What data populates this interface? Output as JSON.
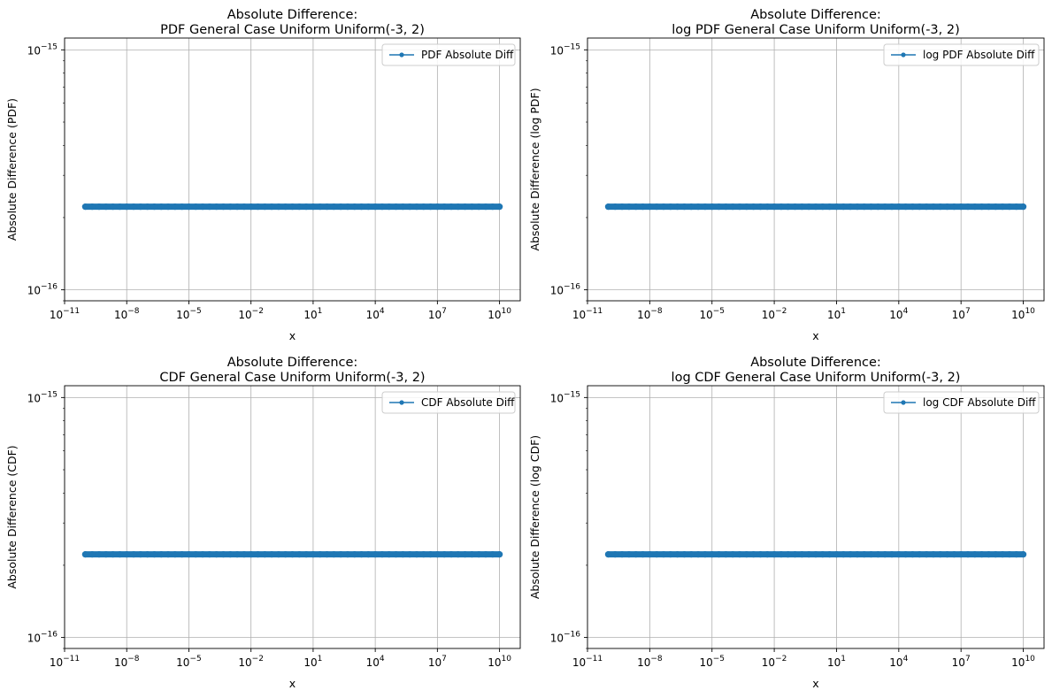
{
  "chart_data": [
    {
      "type": "line",
      "title": [
        "Absolute Difference:",
        "PDF General Case Uniform Uniform(-3, 2)"
      ],
      "xlabel": "x",
      "ylabel": "Absolute Difference (PDF)",
      "xscale": "log",
      "yscale": "log",
      "xlim": [
        1e-11,
        100000000000.0
      ],
      "ylim": [
        9e-17,
        1.12e-15
      ],
      "xticks": [
        {
          "value": 1e-11,
          "base": "10",
          "exp": "−11"
        },
        {
          "value": 1e-08,
          "base": "10",
          "exp": "−8"
        },
        {
          "value": 1e-05,
          "base": "10",
          "exp": "−5"
        },
        {
          "value": 0.01,
          "base": "10",
          "exp": "−2"
        },
        {
          "value": 10.0,
          "base": "10",
          "exp": "1"
        },
        {
          "value": 10000.0,
          "base": "10",
          "exp": "4"
        },
        {
          "value": 10000000.0,
          "base": "10",
          "exp": "7"
        },
        {
          "value": 10000000000.0,
          "base": "10",
          "exp": "10"
        }
      ],
      "yticks": [
        {
          "value": 1e-15,
          "base": "10",
          "exp": "−15"
        },
        {
          "value": 1e-16,
          "base": "10",
          "exp": "−16"
        }
      ],
      "grid": true,
      "legend_position": "top-right",
      "series": [
        {
          "name": "PDF Absolute Diff",
          "color": "#1f77b4",
          "x_range": [
            1e-10,
            10000000000.0
          ],
          "y": 2.22e-16
        }
      ]
    },
    {
      "type": "line",
      "title": [
        "Absolute Difference:",
        "log PDF General Case Uniform Uniform(-3, 2)"
      ],
      "xlabel": "x",
      "ylabel": "Absolute Difference (log PDF)",
      "xscale": "log",
      "yscale": "log",
      "xlim": [
        1e-11,
        100000000000.0
      ],
      "ylim": [
        9e-17,
        1.12e-15
      ],
      "xticks": [
        {
          "value": 1e-11,
          "base": "10",
          "exp": "−11"
        },
        {
          "value": 1e-08,
          "base": "10",
          "exp": "−8"
        },
        {
          "value": 1e-05,
          "base": "10",
          "exp": "−5"
        },
        {
          "value": 0.01,
          "base": "10",
          "exp": "−2"
        },
        {
          "value": 10.0,
          "base": "10",
          "exp": "1"
        },
        {
          "value": 10000.0,
          "base": "10",
          "exp": "4"
        },
        {
          "value": 10000000.0,
          "base": "10",
          "exp": "7"
        },
        {
          "value": 10000000000.0,
          "base": "10",
          "exp": "10"
        }
      ],
      "yticks": [
        {
          "value": 1e-15,
          "base": "10",
          "exp": "−15"
        },
        {
          "value": 1e-16,
          "base": "10",
          "exp": "−16"
        }
      ],
      "grid": true,
      "legend_position": "top-right",
      "series": [
        {
          "name": "log PDF Absolute Diff",
          "color": "#1f77b4",
          "x_range": [
            1e-10,
            10000000000.0
          ],
          "y": 2.22e-16
        }
      ]
    },
    {
      "type": "line",
      "title": [
        "Absolute Difference:",
        "CDF General Case Uniform Uniform(-3, 2)"
      ],
      "xlabel": "x",
      "ylabel": "Absolute Difference (CDF)",
      "xscale": "log",
      "yscale": "log",
      "xlim": [
        1e-11,
        100000000000.0
      ],
      "ylim": [
        9e-17,
        1.12e-15
      ],
      "xticks": [
        {
          "value": 1e-11,
          "base": "10",
          "exp": "−11"
        },
        {
          "value": 1e-08,
          "base": "10",
          "exp": "−8"
        },
        {
          "value": 1e-05,
          "base": "10",
          "exp": "−5"
        },
        {
          "value": 0.01,
          "base": "10",
          "exp": "−2"
        },
        {
          "value": 10.0,
          "base": "10",
          "exp": "1"
        },
        {
          "value": 10000.0,
          "base": "10",
          "exp": "4"
        },
        {
          "value": 10000000.0,
          "base": "10",
          "exp": "7"
        },
        {
          "value": 10000000000.0,
          "base": "10",
          "exp": "10"
        }
      ],
      "yticks": [
        {
          "value": 1e-15,
          "base": "10",
          "exp": "−15"
        },
        {
          "value": 1e-16,
          "base": "10",
          "exp": "−16"
        }
      ],
      "grid": true,
      "legend_position": "top-right",
      "series": [
        {
          "name": "CDF Absolute Diff",
          "color": "#1f77b4",
          "x_range": [
            1e-10,
            10000000000.0
          ],
          "y": 2.22e-16
        }
      ]
    },
    {
      "type": "line",
      "title": [
        "Absolute Difference:",
        "log CDF General Case Uniform Uniform(-3, 2)"
      ],
      "xlabel": "x",
      "ylabel": "Absolute Difference (log CDF)",
      "xscale": "log",
      "yscale": "log",
      "xlim": [
        1e-11,
        100000000000.0
      ],
      "ylim": [
        9e-17,
        1.12e-15
      ],
      "xticks": [
        {
          "value": 1e-11,
          "base": "10",
          "exp": "−11"
        },
        {
          "value": 1e-08,
          "base": "10",
          "exp": "−8"
        },
        {
          "value": 1e-05,
          "base": "10",
          "exp": "−5"
        },
        {
          "value": 0.01,
          "base": "10",
          "exp": "−2"
        },
        {
          "value": 10.0,
          "base": "10",
          "exp": "1"
        },
        {
          "value": 10000.0,
          "base": "10",
          "exp": "4"
        },
        {
          "value": 10000000.0,
          "base": "10",
          "exp": "7"
        },
        {
          "value": 10000000000.0,
          "base": "10",
          "exp": "10"
        }
      ],
      "yticks": [
        {
          "value": 1e-15,
          "base": "10",
          "exp": "−15"
        },
        {
          "value": 1e-16,
          "base": "10",
          "exp": "−16"
        }
      ],
      "grid": true,
      "legend_position": "top-right",
      "series": [
        {
          "name": "log CDF Absolute Diff",
          "color": "#1f77b4",
          "x_range": [
            1e-10,
            10000000000.0
          ],
          "y": 2.22e-16
        }
      ]
    }
  ]
}
